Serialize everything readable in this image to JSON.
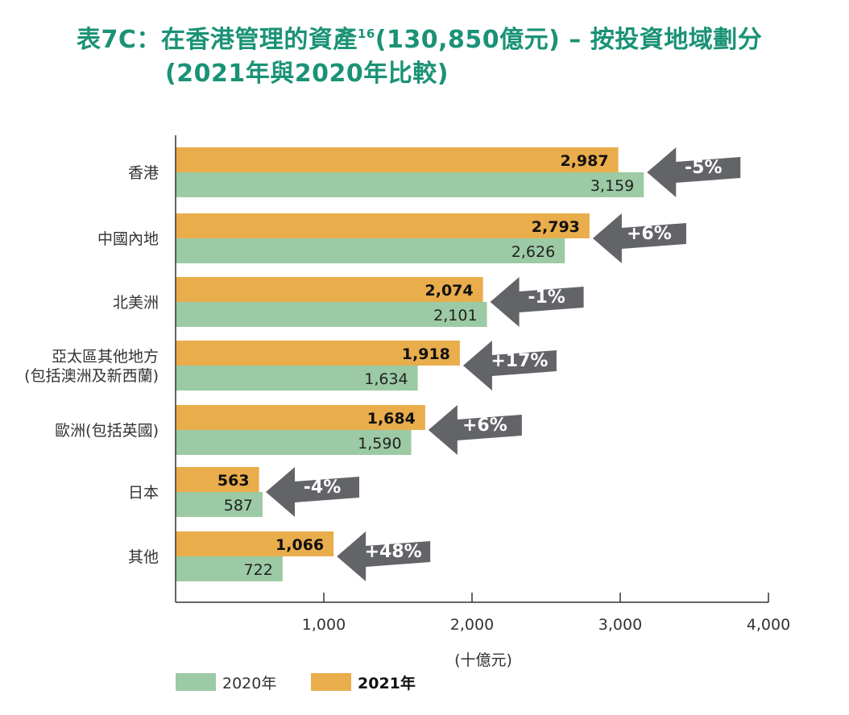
{
  "header": {
    "prefix": "表7C：在香港管理的資產",
    "footnote": "16",
    "suffix": "(130,850億元) – 按投資地域劃分",
    "line2": "(2021年與2020年比較)"
  },
  "colors": {
    "series2021": "#e9ad4c",
    "series2020": "#9ccaa4",
    "arrow": "#626468",
    "title": "#1a9276"
  },
  "chart_data": {
    "type": "bar",
    "orientation": "horizontal",
    "title": "表7C：在香港管理的資產16(130,850億元) – 按投資地域劃分 (2021年與2020年比較)",
    "xlabel": "(十億元)",
    "xlim": [
      0,
      4000
    ],
    "xticks": [
      "1,000",
      "2,000",
      "3,000",
      "4,000"
    ],
    "xtick_values": [
      1000,
      2000,
      3000,
      4000
    ],
    "categories": [
      [
        "香港"
      ],
      [
        "中國內地"
      ],
      [
        "北美洲"
      ],
      [
        "亞太區其他地方",
        "(包括澳洲及新西蘭)"
      ],
      [
        "歐洲(包括英國)"
      ],
      [
        "日本"
      ],
      [
        "其他"
      ]
    ],
    "series": [
      {
        "name": "2021年",
        "values": [
          2987,
          2793,
          2074,
          1918,
          1684,
          563,
          1066
        ],
        "labels": [
          "2,987",
          "2,793",
          "2,074",
          "1,918",
          "1,684",
          "563",
          "1,066"
        ]
      },
      {
        "name": "2020年",
        "values": [
          3159,
          2626,
          2101,
          1634,
          1590,
          587,
          722
        ],
        "labels": [
          "3,159",
          "2,626",
          "2,101",
          "1,634",
          "1,590",
          "587",
          "722"
        ]
      }
    ],
    "changes": [
      "-5%",
      "+6%",
      "-1%",
      "+17%",
      "+6%",
      "-4%",
      "+48%"
    ],
    "legend": [
      {
        "name": "2020年",
        "bold": false
      },
      {
        "name": "2021年",
        "bold": true
      }
    ]
  }
}
